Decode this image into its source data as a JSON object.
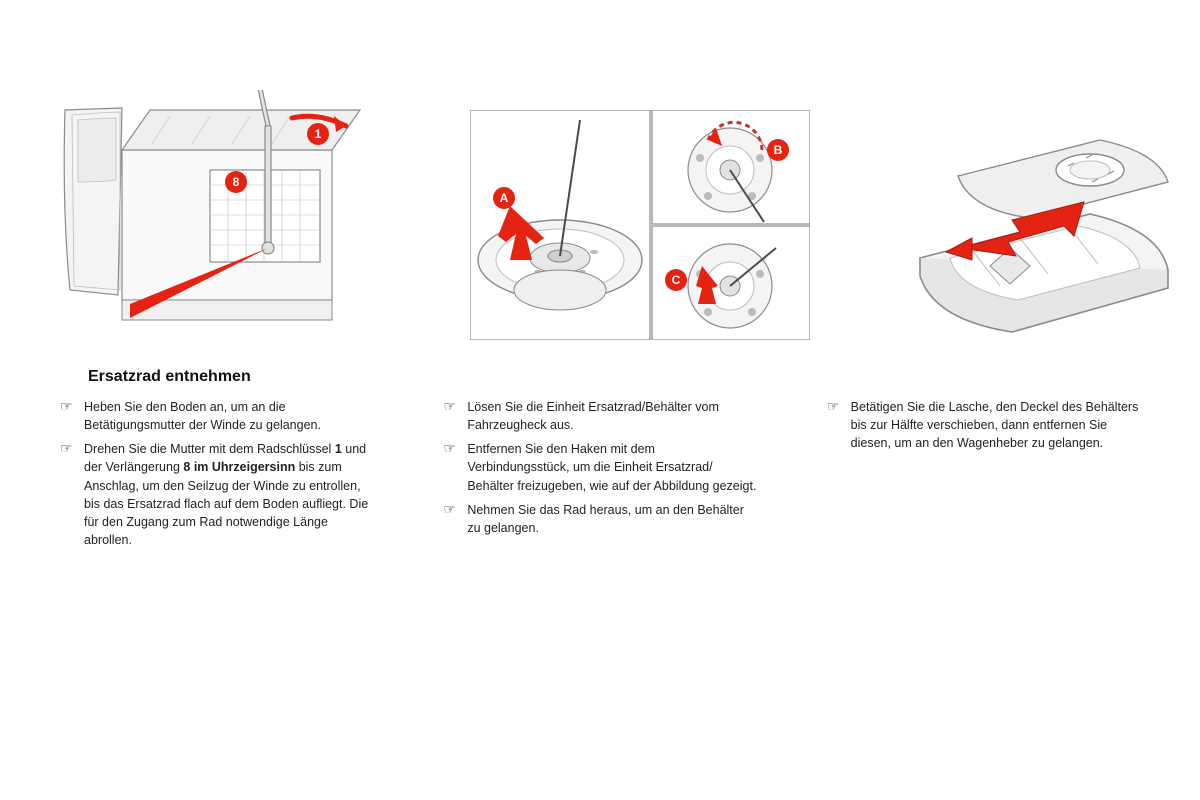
{
  "heading": "Ersatzrad entnehmen",
  "bullet_glyph": "☞",
  "palette": {
    "stroke": "#8a8a8a",
    "stroke_light": "#bcbcbc",
    "fill_light": "#f4f4f4",
    "fill_mid": "#e2e2e2",
    "marker_fill": "#e42313",
    "arrow_fill": "#e42313",
    "marker_text": "#ffffff",
    "marker_font_size": 11,
    "text_color": "#1a1a1a",
    "body_font_size": 12.5,
    "heading_font_size": 16
  },
  "figures": {
    "fig1": {
      "markers": [
        "1",
        "8"
      ]
    },
    "fig2": {
      "markers": [
        "A",
        "B",
        "C"
      ]
    }
  },
  "columns": [
    {
      "items": [
        {
          "html": "Heben Sie den Boden an, um an die Betätigungsmutter der Winde zu gelangen."
        },
        {
          "html": "Drehen Sie die Mutter mit dem Radschlüssel <b>1</b> und der Verlängerung <b>8 im Uhrzeigersinn</b> bis zum Anschlag, um den Seilzug der Winde zu entrollen, bis das Ersatzrad flach auf dem Boden aufliegt. Die für den Zugang zum Rad notwendige Länge abrollen."
        }
      ]
    },
    {
      "items": [
        {
          "html": "Lösen Sie die Einheit Ersatzrad/Behälter vom Fahrzeugheck aus."
        },
        {
          "html": "Entfernen Sie den Haken mit dem Verbindungsstück, um die Einheit Ersatzrad/ Behälter freizugeben, wie auf der Abbildung gezeigt."
        },
        {
          "html": "Nehmen Sie das Rad heraus, um an den Behälter zu gelangen."
        }
      ]
    },
    {
      "items": [
        {
          "html": "Betätigen Sie die Lasche, den Deckel des Behälters bis zur Hälfte verschieben, dann entfernen Sie diesen, um an den Wagenheber zu gelangen."
        }
      ]
    }
  ]
}
